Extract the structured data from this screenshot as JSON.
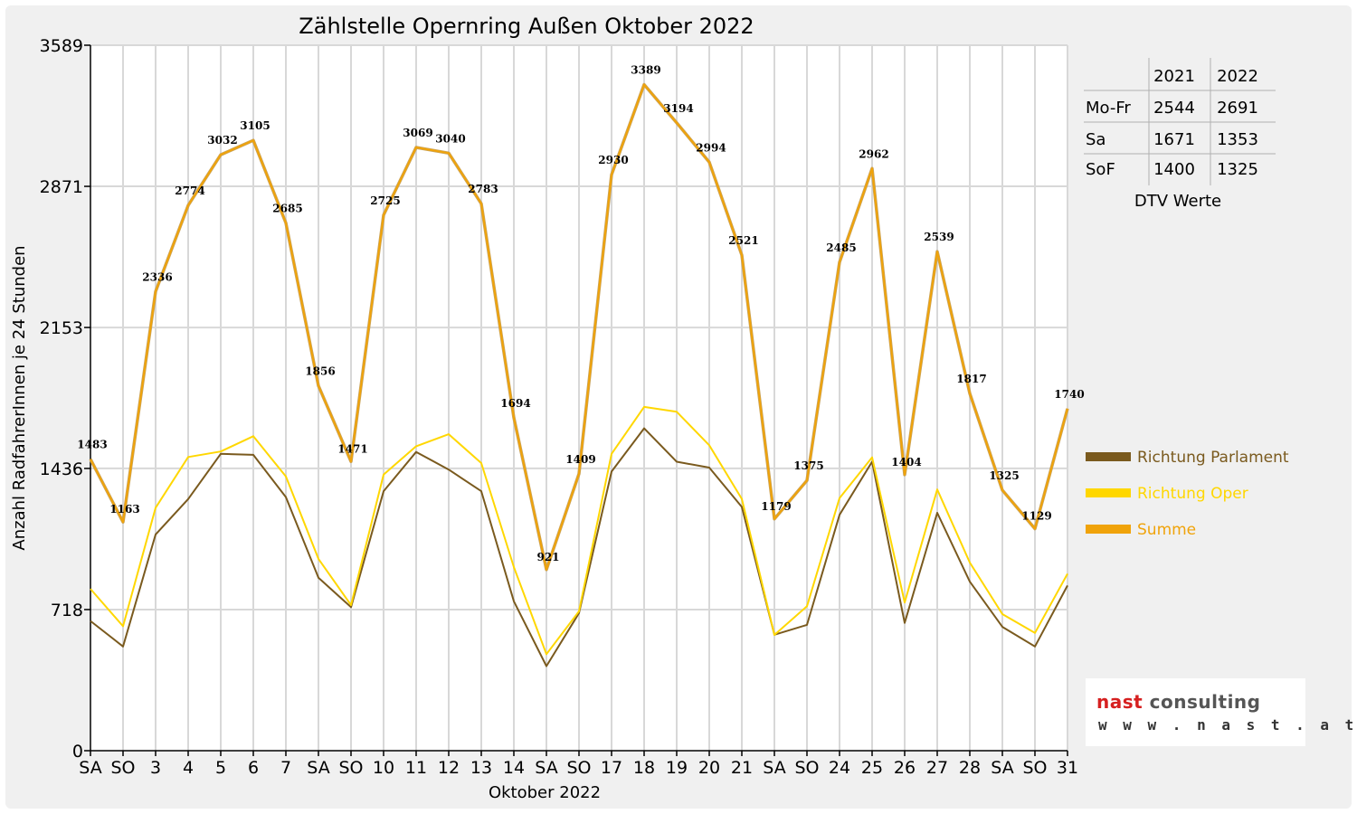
{
  "chart_data": {
    "type": "line",
    "title": "Zählstelle Opernring Außen Oktober 2022",
    "xlabel": "Oktober 2022",
    "ylabel": "Anzahl RadfahrerInnen je 24 Stunden",
    "ylim": [
      0,
      3589
    ],
    "yticks": [
      0,
      718,
      1436,
      2153,
      2871,
      3589
    ],
    "grid": true,
    "legend_position": "right",
    "categories": [
      "SA",
      "SO",
      "3",
      "4",
      "5",
      "6",
      "7",
      "SA",
      "SO",
      "10",
      "11",
      "12",
      "13",
      "14",
      "SA",
      "SO",
      "17",
      "18",
      "19",
      "20",
      "21",
      "SA",
      "SO",
      "24",
      "25",
      "26",
      "27",
      "28",
      "SA",
      "SO",
      "31"
    ],
    "red_categories": [
      1,
      8,
      15,
      22,
      25,
      29
    ],
    "series": [
      {
        "name": "Richtung Parlament",
        "color": "#7a5a1e",
        "values": [
          660,
          530,
          1100,
          1280,
          1510,
          1505,
          1290,
          880,
          730,
          1320,
          1520,
          1430,
          1320,
          760,
          430,
          700,
          1420,
          1640,
          1470,
          1440,
          1240,
          590,
          640,
          1200,
          1470,
          650,
          1210,
          860,
          630,
          530,
          840
        ]
      },
      {
        "name": "Richtung Oper",
        "color": "#ffd700",
        "values": [
          823,
          633,
          1236,
          1494,
          1522,
          1600,
          1395,
          976,
          741,
          1405,
          1549,
          1610,
          1463,
          934,
          491,
          709,
          1510,
          1749,
          1724,
          1554,
          1281,
          589,
          735,
          1285,
          1492,
          754,
          1329,
          957,
          695,
          599,
          900
        ]
      },
      {
        "name": "Summe",
        "color": "#f0a30a",
        "values": [
          1483,
          1163,
          2336,
          2774,
          3032,
          3105,
          2685,
          1856,
          1471,
          2725,
          3069,
          3040,
          2783,
          1694,
          921,
          1409,
          2930,
          3389,
          3194,
          2994,
          2521,
          1179,
          1375,
          2485,
          2962,
          1404,
          2539,
          1817,
          1325,
          1129,
          1740
        ]
      }
    ],
    "data_labels": [
      "1483",
      "1163",
      "2336",
      "2774",
      "3032",
      "3105",
      "2685",
      "1856",
      "1471",
      "2725",
      "3069",
      "3040",
      "2783",
      "1694",
      "921",
      "1409",
      "2930",
      "3389",
      "3194",
      "2994",
      "2521",
      "1179",
      "1375",
      "2485",
      "2962",
      "1404",
      "2539",
      "1817",
      "1325",
      "1129",
      "1740"
    ]
  },
  "dtv_table": {
    "years": [
      "2021",
      "2022"
    ],
    "rows": [
      {
        "label": "Mo-Fr",
        "v2021": "2544",
        "v2022": "2691"
      },
      {
        "label": "Sa",
        "v2021": "1671",
        "v2022": "1353"
      },
      {
        "label": "SoF",
        "v2021": "1400",
        "v2022": "1325"
      }
    ],
    "caption": "DTV Werte"
  },
  "logo": {
    "brand_a": "nast",
    "brand_b": "consulting",
    "url": "w w w . n a s t . a t"
  },
  "colors": {
    "weekday_tick": "#000000",
    "holiday_tick": "#e00000",
    "grid": "#d8d8d8"
  }
}
